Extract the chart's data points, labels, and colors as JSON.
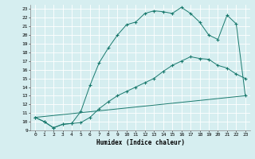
{
  "xlabel": "Humidex (Indice chaleur)",
  "bg_color": "#d6eef0",
  "line_color": "#1a7a6e",
  "grid_color": "#ffffff",
  "xlim": [
    -0.5,
    23.5
  ],
  "ylim": [
    9,
    23.5
  ],
  "xticks": [
    0,
    1,
    2,
    3,
    4,
    5,
    6,
    7,
    8,
    9,
    10,
    11,
    12,
    13,
    14,
    15,
    16,
    17,
    18,
    19,
    20,
    21,
    22,
    23
  ],
  "yticks": [
    9,
    10,
    11,
    12,
    13,
    14,
    15,
    16,
    17,
    18,
    19,
    20,
    21,
    22,
    23
  ],
  "line1_x": [
    0,
    1,
    2,
    3,
    4,
    5,
    6,
    7,
    8,
    9,
    10,
    11,
    12,
    13,
    14,
    15,
    16,
    17,
    18,
    19,
    20,
    21,
    22,
    23
  ],
  "line1_y": [
    10.5,
    10.0,
    9.3,
    9.7,
    9.8,
    11.2,
    14.2,
    16.8,
    18.5,
    20.0,
    21.2,
    21.5,
    22.5,
    22.8,
    22.7,
    22.5,
    23.2,
    22.5,
    21.5,
    20.0,
    19.5,
    22.3,
    21.3,
    13.0
  ],
  "line2_x": [
    0,
    1,
    2,
    3,
    4,
    5,
    6,
    7,
    8,
    9,
    10,
    11,
    12,
    13,
    14,
    15,
    16,
    17,
    18,
    19,
    20,
    21,
    22,
    23
  ],
  "line2_y": [
    10.5,
    10.0,
    9.3,
    9.7,
    9.8,
    9.9,
    10.5,
    11.5,
    12.3,
    13.0,
    13.5,
    14.0,
    14.5,
    15.0,
    15.8,
    16.5,
    17.0,
    17.5,
    17.3,
    17.2,
    16.5,
    16.2,
    15.5,
    15.0
  ],
  "line3_x": [
    0,
    23
  ],
  "line3_y": [
    10.5,
    13.0
  ]
}
